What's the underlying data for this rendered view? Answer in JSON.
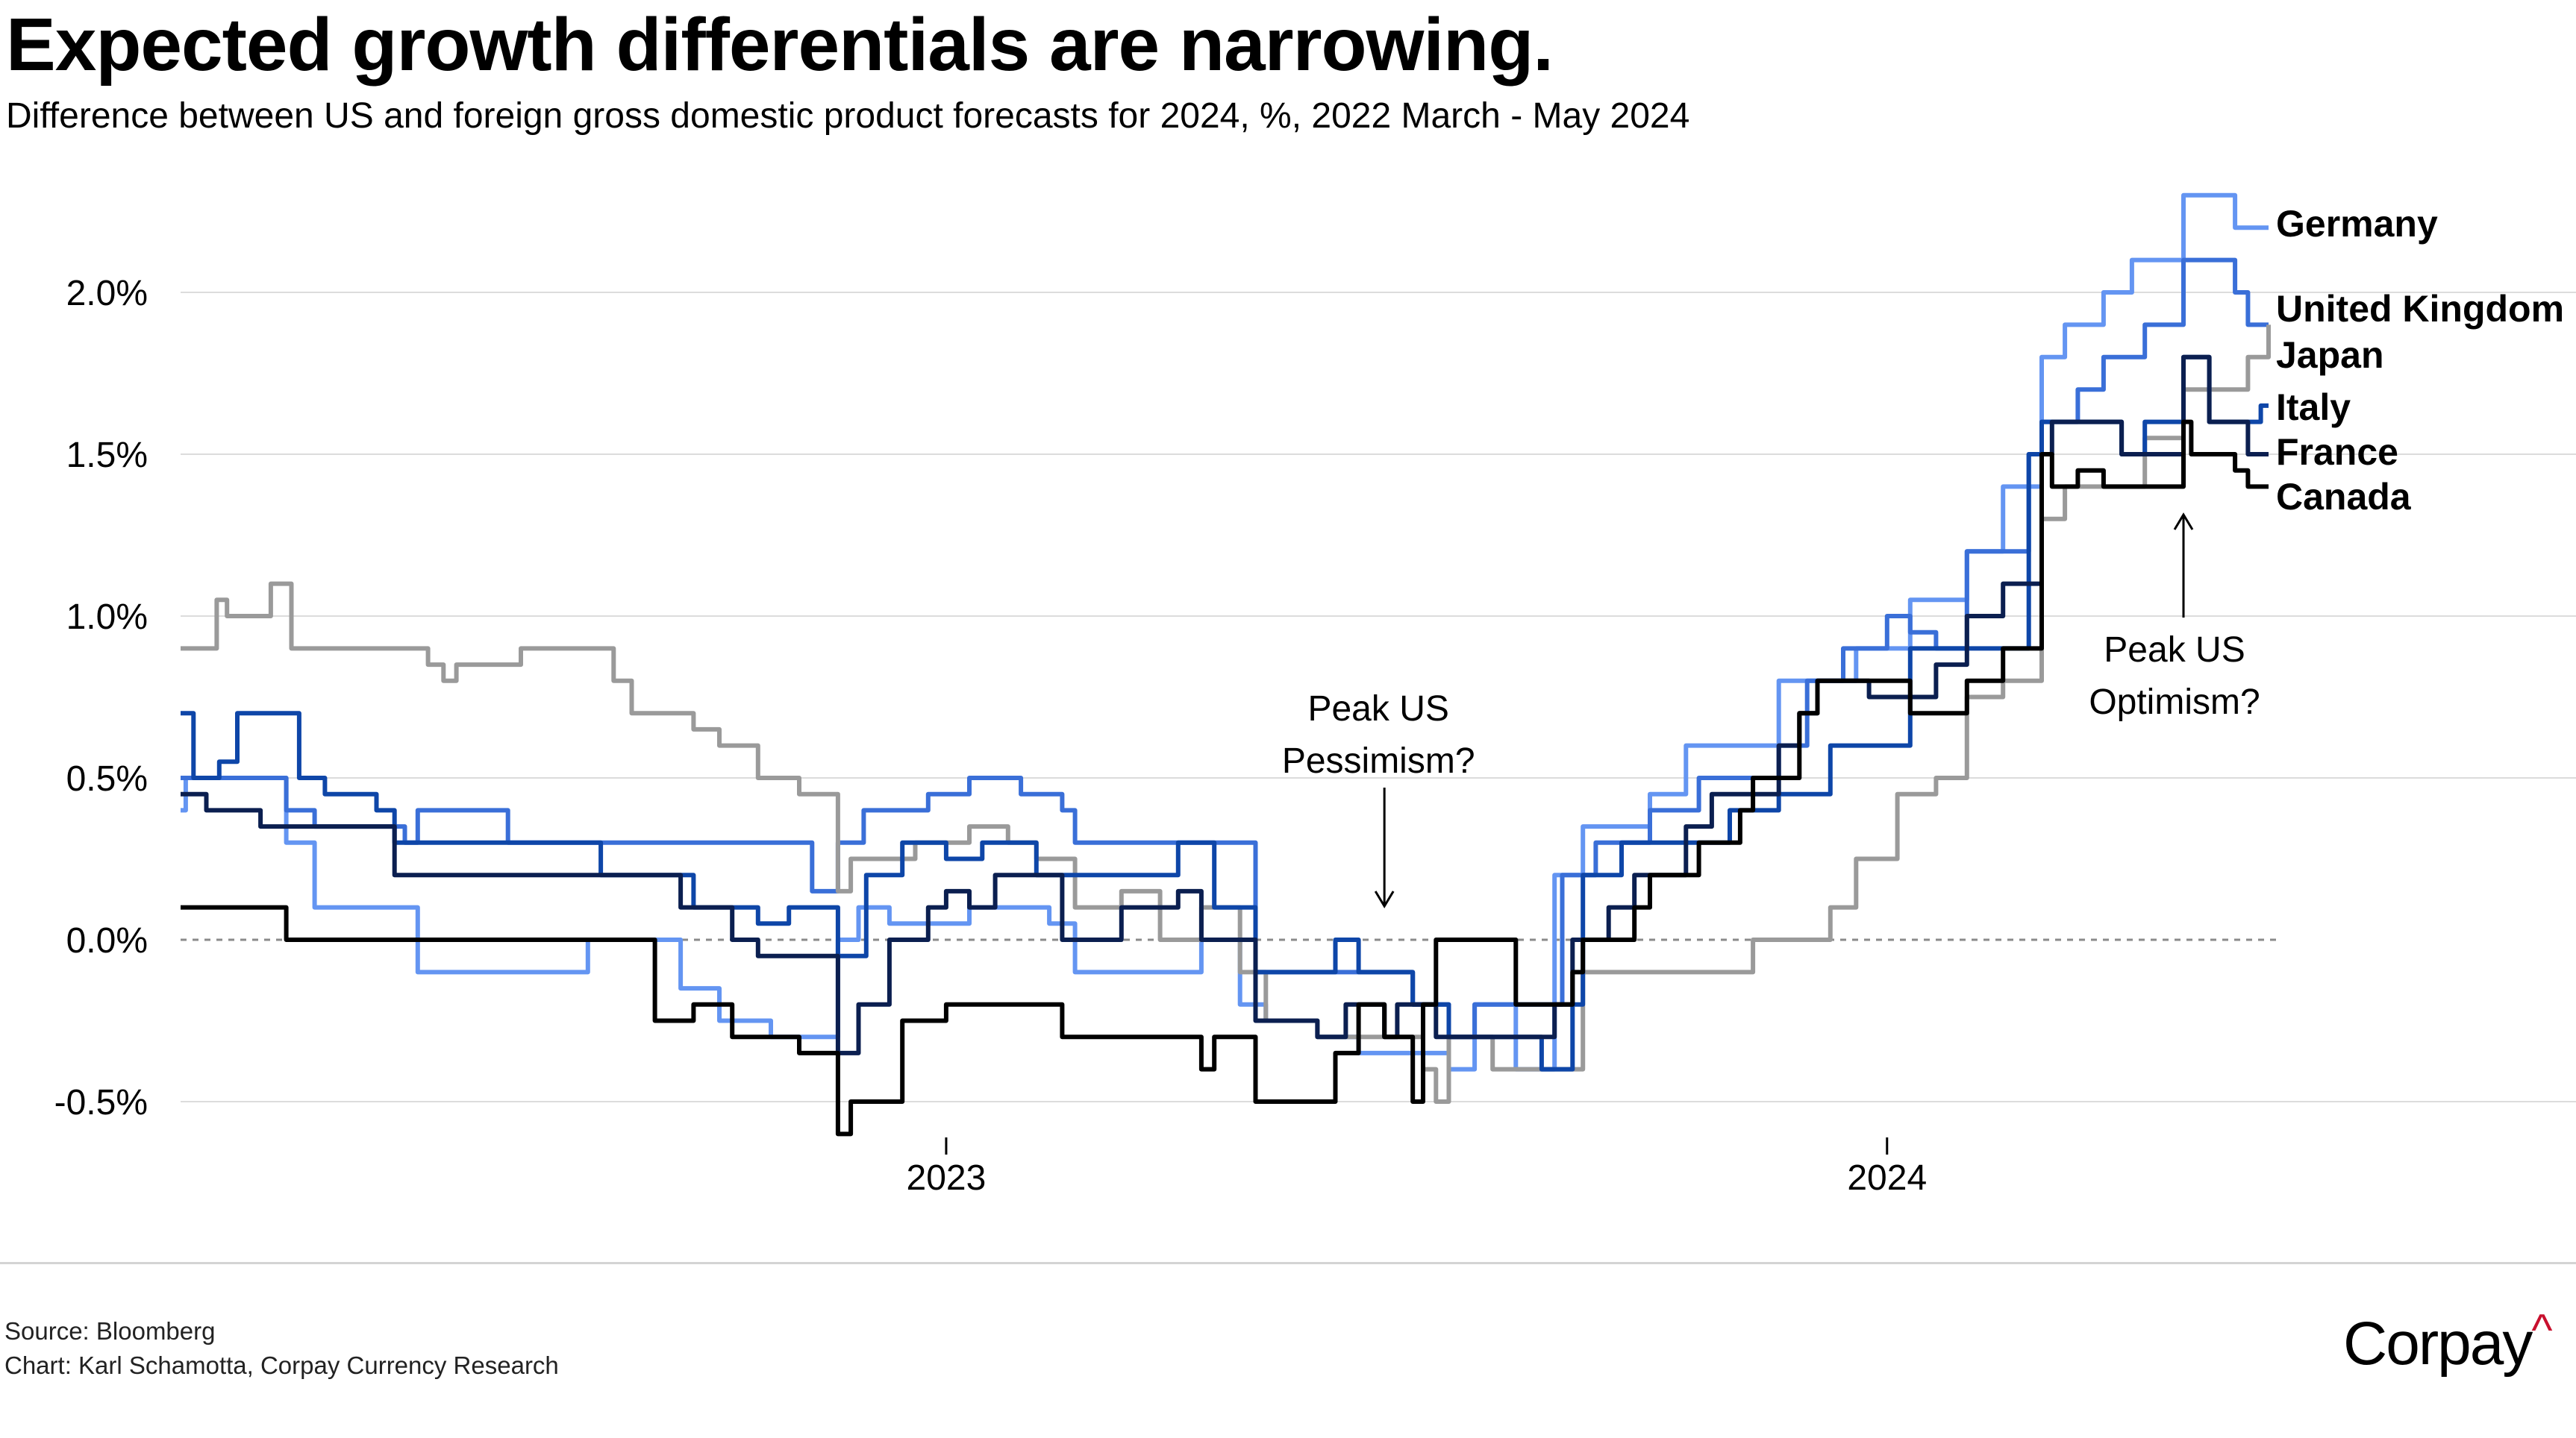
{
  "header": {
    "title": "Expected growth differentials are narrowing.",
    "subtitle": "Difference between US and foreign gross domestic product forecasts for 2024, %, 2022 March - May 2024"
  },
  "footer": {
    "source": "Source: Bloomberg",
    "credit": "Chart: Karl Schamotta, Corpay Currency Research",
    "logo_text": "Corpay",
    "logo_accent": "^",
    "logo_accent_color": "#c8102e"
  },
  "chart_data": {
    "type": "line",
    "step": true,
    "x_range": [
      "2022-03-10",
      "2024-05-28"
    ],
    "ylim": [
      -0.6,
      2.4
    ],
    "y_ticks": [
      -0.5,
      0,
      0.5,
      1.0,
      1.5,
      2.0
    ],
    "y_tick_labels": [
      "-0.5%",
      "0.0%",
      "0.5%",
      "1.0%",
      "1.5%",
      "2.0%"
    ],
    "x_ticks": [
      "2023-01-01",
      "2024-01-01"
    ],
    "x_tick_labels": [
      "2023",
      "2024"
    ],
    "grid": "horizontal",
    "zero_line": "dotted",
    "legend": "direct labels at line ends (right)",
    "annotations": [
      {
        "lines": [
          "Peak US",
          "Pessimism?"
        ],
        "date": "2023-06-20",
        "arrow": "down"
      },
      {
        "lines": [
          "Peak US",
          "Optimism?"
        ],
        "date": "2024-04-25",
        "arrow": "up"
      }
    ],
    "series": [
      {
        "name": "Germany",
        "color": "#6495f2",
        "points": [
          [
            "2022-03-10",
            0.4
          ],
          [
            "2022-03-12",
            0.5
          ],
          [
            "2022-04-20",
            0.3
          ],
          [
            "2022-05-01",
            0.1
          ],
          [
            "2022-06-10",
            -0.1
          ],
          [
            "2022-08-15",
            0.0
          ],
          [
            "2022-09-20",
            -0.15
          ],
          [
            "2022-10-05",
            -0.25
          ],
          [
            "2022-10-25",
            -0.3
          ],
          [
            "2022-11-20",
            0.0
          ],
          [
            "2022-11-28",
            0.1
          ],
          [
            "2022-12-10",
            0.05
          ],
          [
            "2023-01-10",
            0.1
          ],
          [
            "2023-02-10",
            0.05
          ],
          [
            "2023-02-20",
            -0.1
          ],
          [
            "2023-04-10",
            0.0
          ],
          [
            "2023-04-25",
            -0.2
          ],
          [
            "2023-05-05",
            -0.25
          ],
          [
            "2023-05-25",
            -0.3
          ],
          [
            "2023-06-10",
            -0.35
          ],
          [
            "2023-07-15",
            -0.4
          ],
          [
            "2023-07-25",
            -0.2
          ],
          [
            "2023-08-10",
            -0.4
          ],
          [
            "2023-08-25",
            0.2
          ],
          [
            "2023-09-05",
            0.35
          ],
          [
            "2023-10-01",
            0.45
          ],
          [
            "2023-10-15",
            0.6
          ],
          [
            "2023-11-20",
            0.8
          ],
          [
            "2023-12-20",
            0.9
          ],
          [
            "2024-01-10",
            1.05
          ],
          [
            "2024-02-01",
            1.2
          ],
          [
            "2024-02-15",
            1.4
          ],
          [
            "2024-03-01",
            1.8
          ],
          [
            "2024-03-10",
            1.9
          ],
          [
            "2024-03-25",
            2.0
          ],
          [
            "2024-04-05",
            2.1
          ],
          [
            "2024-04-25",
            2.3
          ],
          [
            "2024-05-15",
            2.2
          ],
          [
            "2024-05-28",
            2.2
          ]
        ]
      },
      {
        "name": "United Kingdom",
        "color": "#3a6fd8",
        "points": [
          [
            "2022-03-10",
            0.5
          ],
          [
            "2022-04-20",
            0.4
          ],
          [
            "2022-05-01",
            0.35
          ],
          [
            "2022-06-05",
            0.3
          ],
          [
            "2022-06-10",
            0.4
          ],
          [
            "2022-07-15",
            0.3
          ],
          [
            "2022-09-20",
            0.3
          ],
          [
            "2022-11-10",
            0.15
          ],
          [
            "2022-11-20",
            0.3
          ],
          [
            "2022-11-30",
            0.4
          ],
          [
            "2022-12-25",
            0.45
          ],
          [
            "2023-01-10",
            0.5
          ],
          [
            "2023-01-30",
            0.45
          ],
          [
            "2023-02-15",
            0.4
          ],
          [
            "2023-02-20",
            0.3
          ],
          [
            "2023-04-20",
            0.3
          ],
          [
            "2023-05-01",
            -0.1
          ],
          [
            "2023-06-15",
            -0.1
          ],
          [
            "2023-07-01",
            -0.2
          ],
          [
            "2023-07-15",
            -0.3
          ],
          [
            "2023-07-25",
            -0.2
          ],
          [
            "2023-08-28",
            0.2
          ],
          [
            "2023-09-10",
            0.3
          ],
          [
            "2023-10-01",
            0.4
          ],
          [
            "2023-10-20",
            0.5
          ],
          [
            "2023-11-20",
            0.6
          ],
          [
            "2023-12-01",
            0.8
          ],
          [
            "2023-12-15",
            0.9
          ],
          [
            "2024-01-01",
            1.0
          ],
          [
            "2024-01-10",
            0.95
          ],
          [
            "2024-01-20",
            0.9
          ],
          [
            "2024-02-01",
            1.2
          ],
          [
            "2024-02-25",
            1.5
          ],
          [
            "2024-03-01",
            1.6
          ],
          [
            "2024-03-15",
            1.7
          ],
          [
            "2024-03-25",
            1.8
          ],
          [
            "2024-04-10",
            1.9
          ],
          [
            "2024-04-25",
            2.1
          ],
          [
            "2024-05-15",
            2.0
          ],
          [
            "2024-05-20",
            1.9
          ],
          [
            "2024-05-28",
            1.9
          ]
        ]
      },
      {
        "name": "Japan",
        "color": "#9a9a9a",
        "points": [
          [
            "2022-03-10",
            0.9
          ],
          [
            "2022-03-24",
            1.05
          ],
          [
            "2022-03-28",
            1.0
          ],
          [
            "2022-04-14",
            1.1
          ],
          [
            "2022-04-22",
            0.9
          ],
          [
            "2022-06-14",
            0.85
          ],
          [
            "2022-06-20",
            0.8
          ],
          [
            "2022-06-25",
            0.85
          ],
          [
            "2022-07-20",
            0.9
          ],
          [
            "2022-08-25",
            0.8
          ],
          [
            "2022-09-01",
            0.7
          ],
          [
            "2022-09-25",
            0.65
          ],
          [
            "2022-10-05",
            0.6
          ],
          [
            "2022-10-20",
            0.5
          ],
          [
            "2022-11-05",
            0.45
          ],
          [
            "2022-11-20",
            0.15
          ],
          [
            "2022-11-25",
            0.25
          ],
          [
            "2022-12-20",
            0.3
          ],
          [
            "2023-01-10",
            0.35
          ],
          [
            "2023-01-25",
            0.3
          ],
          [
            "2023-02-05",
            0.25
          ],
          [
            "2023-02-20",
            0.1
          ],
          [
            "2023-03-10",
            0.15
          ],
          [
            "2023-03-25",
            0.0
          ],
          [
            "2023-04-10",
            0.1
          ],
          [
            "2023-04-25",
            -0.1
          ],
          [
            "2023-05-05",
            -0.25
          ],
          [
            "2023-05-25",
            -0.3
          ],
          [
            "2023-06-20",
            -0.3
          ],
          [
            "2023-07-05",
            -0.4
          ],
          [
            "2023-07-10",
            -0.5
          ],
          [
            "2023-07-15",
            -0.3
          ],
          [
            "2023-08-01",
            -0.4
          ],
          [
            "2023-09-05",
            -0.1
          ],
          [
            "2023-10-20",
            -0.1
          ],
          [
            "2023-11-10",
            0.0
          ],
          [
            "2023-12-05",
            0.0
          ],
          [
            "2023-12-10",
            0.1
          ],
          [
            "2023-12-20",
            0.25
          ],
          [
            "2024-01-05",
            0.45
          ],
          [
            "2024-01-20",
            0.5
          ],
          [
            "2024-02-01",
            0.75
          ],
          [
            "2024-02-15",
            0.8
          ],
          [
            "2024-03-01",
            1.3
          ],
          [
            "2024-03-10",
            1.4
          ],
          [
            "2024-04-10",
            1.55
          ],
          [
            "2024-04-25",
            1.7
          ],
          [
            "2024-05-20",
            1.8
          ],
          [
            "2024-05-28",
            1.9
          ]
        ]
      },
      {
        "name": "Italy",
        "color": "#0e46a8",
        "points": [
          [
            "2022-03-10",
            0.7
          ],
          [
            "2022-03-15",
            0.5
          ],
          [
            "2022-03-25",
            0.55
          ],
          [
            "2022-04-01",
            0.7
          ],
          [
            "2022-04-25",
            0.5
          ],
          [
            "2022-05-05",
            0.45
          ],
          [
            "2022-05-25",
            0.4
          ],
          [
            "2022-06-01",
            0.3
          ],
          [
            "2022-08-20",
            0.2
          ],
          [
            "2022-09-25",
            0.1
          ],
          [
            "2022-10-20",
            0.05
          ],
          [
            "2022-11-01",
            0.1
          ],
          [
            "2022-11-20",
            -0.05
          ],
          [
            "2022-12-01",
            0.2
          ],
          [
            "2022-12-15",
            0.3
          ],
          [
            "2023-01-01",
            0.25
          ],
          [
            "2023-01-15",
            0.3
          ],
          [
            "2023-02-05",
            0.2
          ],
          [
            "2023-04-01",
            0.3
          ],
          [
            "2023-04-15",
            0.1
          ],
          [
            "2023-05-01",
            -0.1
          ],
          [
            "2023-06-01",
            0.0
          ],
          [
            "2023-06-10",
            -0.1
          ],
          [
            "2023-07-01",
            -0.2
          ],
          [
            "2023-07-15",
            -0.3
          ],
          [
            "2023-08-20",
            -0.4
          ],
          [
            "2023-09-01",
            -0.2
          ],
          [
            "2023-09-05",
            0.2
          ],
          [
            "2023-09-20",
            0.3
          ],
          [
            "2023-11-01",
            0.4
          ],
          [
            "2023-11-20",
            0.45
          ],
          [
            "2023-12-10",
            0.6
          ],
          [
            "2024-01-10",
            0.9
          ],
          [
            "2024-02-25",
            1.5
          ],
          [
            "2024-03-01",
            1.6
          ],
          [
            "2024-04-01",
            1.5
          ],
          [
            "2024-04-10",
            1.6
          ],
          [
            "2024-04-25",
            1.8
          ],
          [
            "2024-05-05",
            1.6
          ],
          [
            "2024-05-25",
            1.65
          ],
          [
            "2024-05-28",
            1.65
          ]
        ]
      },
      {
        "name": "France",
        "color": "#0b1f50",
        "points": [
          [
            "2022-03-10",
            0.45
          ],
          [
            "2022-03-20",
            0.4
          ],
          [
            "2022-04-10",
            0.35
          ],
          [
            "2022-06-01",
            0.2
          ],
          [
            "2022-09-20",
            0.1
          ],
          [
            "2022-10-10",
            0.0
          ],
          [
            "2022-10-20",
            -0.05
          ],
          [
            "2022-11-20",
            -0.35
          ],
          [
            "2022-11-28",
            -0.2
          ],
          [
            "2022-12-10",
            0.0
          ],
          [
            "2022-12-25",
            0.1
          ],
          [
            "2023-01-01",
            0.15
          ],
          [
            "2023-01-10",
            0.1
          ],
          [
            "2023-01-20",
            0.2
          ],
          [
            "2023-02-15",
            0.0
          ],
          [
            "2023-03-10",
            0.1
          ],
          [
            "2023-04-01",
            0.15
          ],
          [
            "2023-04-10",
            0.0
          ],
          [
            "2023-05-01",
            -0.25
          ],
          [
            "2023-05-25",
            -0.3
          ],
          [
            "2023-06-05",
            -0.2
          ],
          [
            "2023-06-20",
            -0.3
          ],
          [
            "2023-06-25",
            -0.2
          ],
          [
            "2023-07-10",
            -0.3
          ],
          [
            "2023-08-25",
            -0.2
          ],
          [
            "2023-09-01",
            0.0
          ],
          [
            "2023-09-15",
            0.1
          ],
          [
            "2023-09-25",
            0.2
          ],
          [
            "2023-10-15",
            0.35
          ],
          [
            "2023-10-25",
            0.45
          ],
          [
            "2023-11-20",
            0.6
          ],
          [
            "2023-11-28",
            0.7
          ],
          [
            "2023-12-05",
            0.8
          ],
          [
            "2023-12-25",
            0.75
          ],
          [
            "2024-01-20",
            0.85
          ],
          [
            "2024-02-01",
            1.0
          ],
          [
            "2024-02-15",
            1.1
          ],
          [
            "2024-03-01",
            1.5
          ],
          [
            "2024-03-05",
            1.6
          ],
          [
            "2024-04-01",
            1.5
          ],
          [
            "2024-04-25",
            1.8
          ],
          [
            "2024-05-05",
            1.6
          ],
          [
            "2024-05-20",
            1.5
          ],
          [
            "2024-05-28",
            1.5
          ]
        ]
      },
      {
        "name": "Canada",
        "color": "#000000",
        "points": [
          [
            "2022-03-10",
            0.1
          ],
          [
            "2022-04-20",
            0.0
          ],
          [
            "2022-09-10",
            -0.25
          ],
          [
            "2022-09-25",
            -0.2
          ],
          [
            "2022-10-10",
            -0.3
          ],
          [
            "2022-11-05",
            -0.35
          ],
          [
            "2022-11-20",
            -0.6
          ],
          [
            "2022-11-25",
            -0.5
          ],
          [
            "2022-12-15",
            -0.25
          ],
          [
            "2023-01-01",
            -0.2
          ],
          [
            "2023-02-15",
            -0.3
          ],
          [
            "2023-04-10",
            -0.4
          ],
          [
            "2023-04-15",
            -0.3
          ],
          [
            "2023-05-01",
            -0.5
          ],
          [
            "2023-06-01",
            -0.35
          ],
          [
            "2023-06-10",
            -0.2
          ],
          [
            "2023-06-20",
            -0.3
          ],
          [
            "2023-07-01",
            -0.5
          ],
          [
            "2023-07-05",
            -0.2
          ],
          [
            "2023-07-10",
            0.0
          ],
          [
            "2023-08-10",
            -0.2
          ],
          [
            "2023-09-01",
            -0.1
          ],
          [
            "2023-09-05",
            0.0
          ],
          [
            "2023-09-25",
            0.1
          ],
          [
            "2023-10-01",
            0.2
          ],
          [
            "2023-10-20",
            0.3
          ],
          [
            "2023-11-05",
            0.4
          ],
          [
            "2023-11-10",
            0.5
          ],
          [
            "2023-11-28",
            0.7
          ],
          [
            "2023-12-05",
            0.8
          ],
          [
            "2024-01-10",
            0.7
          ],
          [
            "2024-02-01",
            0.8
          ],
          [
            "2024-02-15",
            0.9
          ],
          [
            "2024-03-01",
            1.5
          ],
          [
            "2024-03-05",
            1.4
          ],
          [
            "2024-03-15",
            1.45
          ],
          [
            "2024-03-25",
            1.4
          ],
          [
            "2024-04-25",
            1.6
          ],
          [
            "2024-04-28",
            1.5
          ],
          [
            "2024-05-15",
            1.45
          ],
          [
            "2024-05-20",
            1.4
          ],
          [
            "2024-05-28",
            1.4
          ]
        ]
      }
    ]
  }
}
